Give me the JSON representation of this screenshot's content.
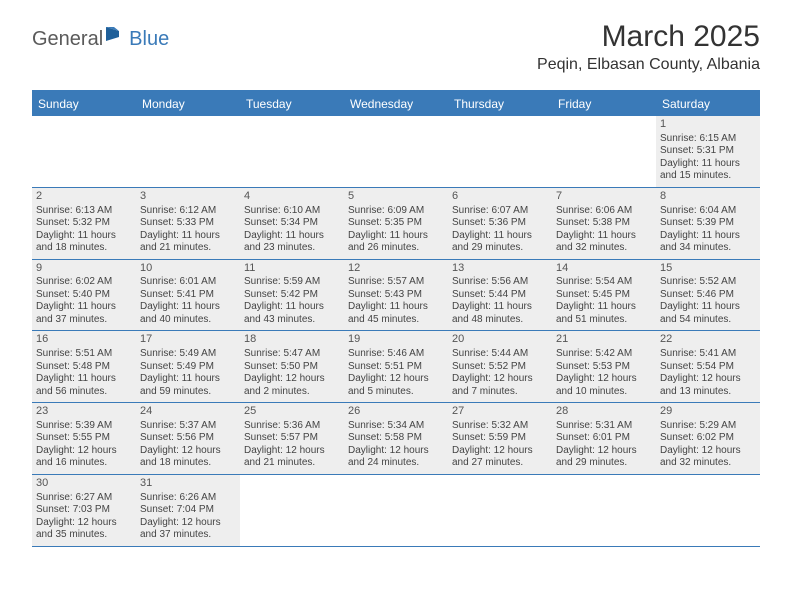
{
  "logo": {
    "part1": "General",
    "part2": "Blue"
  },
  "title": "March 2025",
  "location": "Peqin, Elbasan County, Albania",
  "header_bg": "#3a7ab8",
  "cell_bg": "#eeeeee",
  "text_color": "#444444",
  "day_names": [
    "Sunday",
    "Monday",
    "Tuesday",
    "Wednesday",
    "Thursday",
    "Friday",
    "Saturday"
  ],
  "weeks": [
    [
      null,
      null,
      null,
      null,
      null,
      null,
      {
        "n": "1",
        "sr": "6:15 AM",
        "ss": "5:31 PM",
        "dl": "11 hours and 15 minutes."
      }
    ],
    [
      {
        "n": "2",
        "sr": "6:13 AM",
        "ss": "5:32 PM",
        "dl": "11 hours and 18 minutes."
      },
      {
        "n": "3",
        "sr": "6:12 AM",
        "ss": "5:33 PM",
        "dl": "11 hours and 21 minutes."
      },
      {
        "n": "4",
        "sr": "6:10 AM",
        "ss": "5:34 PM",
        "dl": "11 hours and 23 minutes."
      },
      {
        "n": "5",
        "sr": "6:09 AM",
        "ss": "5:35 PM",
        "dl": "11 hours and 26 minutes."
      },
      {
        "n": "6",
        "sr": "6:07 AM",
        "ss": "5:36 PM",
        "dl": "11 hours and 29 minutes."
      },
      {
        "n": "7",
        "sr": "6:06 AM",
        "ss": "5:38 PM",
        "dl": "11 hours and 32 minutes."
      },
      {
        "n": "8",
        "sr": "6:04 AM",
        "ss": "5:39 PM",
        "dl": "11 hours and 34 minutes."
      }
    ],
    [
      {
        "n": "9",
        "sr": "6:02 AM",
        "ss": "5:40 PM",
        "dl": "11 hours and 37 minutes."
      },
      {
        "n": "10",
        "sr": "6:01 AM",
        "ss": "5:41 PM",
        "dl": "11 hours and 40 minutes."
      },
      {
        "n": "11",
        "sr": "5:59 AM",
        "ss": "5:42 PM",
        "dl": "11 hours and 43 minutes."
      },
      {
        "n": "12",
        "sr": "5:57 AM",
        "ss": "5:43 PM",
        "dl": "11 hours and 45 minutes."
      },
      {
        "n": "13",
        "sr": "5:56 AM",
        "ss": "5:44 PM",
        "dl": "11 hours and 48 minutes."
      },
      {
        "n": "14",
        "sr": "5:54 AM",
        "ss": "5:45 PM",
        "dl": "11 hours and 51 minutes."
      },
      {
        "n": "15",
        "sr": "5:52 AM",
        "ss": "5:46 PM",
        "dl": "11 hours and 54 minutes."
      }
    ],
    [
      {
        "n": "16",
        "sr": "5:51 AM",
        "ss": "5:48 PM",
        "dl": "11 hours and 56 minutes."
      },
      {
        "n": "17",
        "sr": "5:49 AM",
        "ss": "5:49 PM",
        "dl": "11 hours and 59 minutes."
      },
      {
        "n": "18",
        "sr": "5:47 AM",
        "ss": "5:50 PM",
        "dl": "12 hours and 2 minutes."
      },
      {
        "n": "19",
        "sr": "5:46 AM",
        "ss": "5:51 PM",
        "dl": "12 hours and 5 minutes."
      },
      {
        "n": "20",
        "sr": "5:44 AM",
        "ss": "5:52 PM",
        "dl": "12 hours and 7 minutes."
      },
      {
        "n": "21",
        "sr": "5:42 AM",
        "ss": "5:53 PM",
        "dl": "12 hours and 10 minutes."
      },
      {
        "n": "22",
        "sr": "5:41 AM",
        "ss": "5:54 PM",
        "dl": "12 hours and 13 minutes."
      }
    ],
    [
      {
        "n": "23",
        "sr": "5:39 AM",
        "ss": "5:55 PM",
        "dl": "12 hours and 16 minutes."
      },
      {
        "n": "24",
        "sr": "5:37 AM",
        "ss": "5:56 PM",
        "dl": "12 hours and 18 minutes."
      },
      {
        "n": "25",
        "sr": "5:36 AM",
        "ss": "5:57 PM",
        "dl": "12 hours and 21 minutes."
      },
      {
        "n": "26",
        "sr": "5:34 AM",
        "ss": "5:58 PM",
        "dl": "12 hours and 24 minutes."
      },
      {
        "n": "27",
        "sr": "5:32 AM",
        "ss": "5:59 PM",
        "dl": "12 hours and 27 minutes."
      },
      {
        "n": "28",
        "sr": "5:31 AM",
        "ss": "6:01 PM",
        "dl": "12 hours and 29 minutes."
      },
      {
        "n": "29",
        "sr": "5:29 AM",
        "ss": "6:02 PM",
        "dl": "12 hours and 32 minutes."
      }
    ],
    [
      {
        "n": "30",
        "sr": "6:27 AM",
        "ss": "7:03 PM",
        "dl": "12 hours and 35 minutes."
      },
      {
        "n": "31",
        "sr": "6:26 AM",
        "ss": "7:04 PM",
        "dl": "12 hours and 37 minutes."
      },
      null,
      null,
      null,
      null,
      null
    ]
  ],
  "labels": {
    "sunrise": "Sunrise:",
    "sunset": "Sunset:",
    "daylight": "Daylight:"
  }
}
